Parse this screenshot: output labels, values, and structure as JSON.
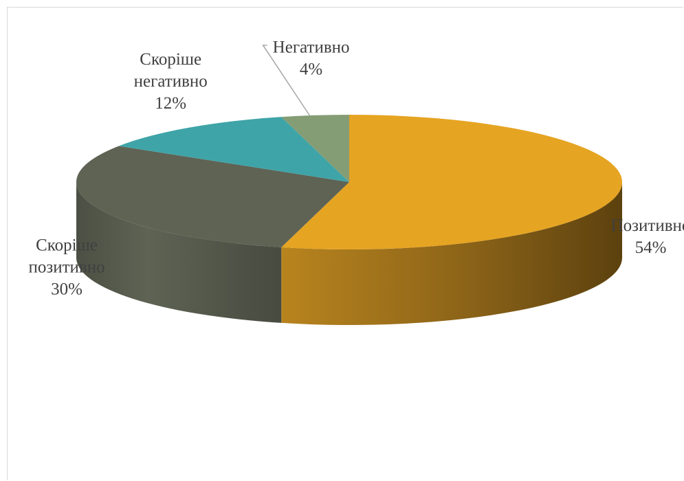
{
  "chart_data": {
    "type": "pie",
    "style": "3d",
    "title": "",
    "slices": [
      {
        "label_lines": [
          "Позитивно"
        ],
        "value": 54,
        "value_label": "54%",
        "color": "#E5A422"
      },
      {
        "label_lines": [
          "Скоріше",
          "позитивно"
        ],
        "value": 30,
        "value_label": "30%",
        "color": "#5E6354"
      },
      {
        "label_lines": [
          "Скоріше",
          "негативно"
        ],
        "value": 12,
        "value_label": "12%",
        "color": "#3FA4A8"
      },
      {
        "label_lines": [
          "Негативно"
        ],
        "value": 4,
        "value_label": "4%",
        "color": "#859D74"
      }
    ],
    "legend": "none",
    "data_labels": "outside"
  }
}
